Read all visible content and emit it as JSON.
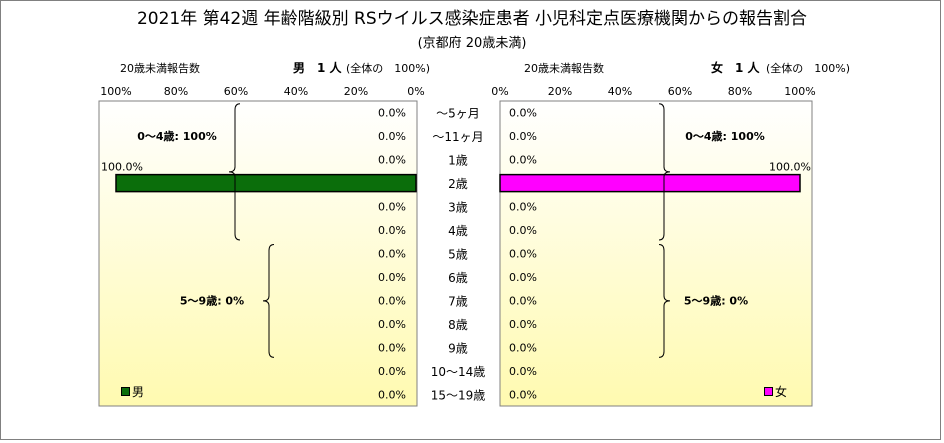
{
  "header": {
    "title": "2021年 第42週 年齢階級別 RSウイルス感染症患者 小児科定点医療機関からの報告割合",
    "subtitle": "(京都府 20歳未満)",
    "left_count_label": "20歳未満報告数",
    "left_sex_label": "男　1 人",
    "left_total_label": "(全体の　100%)",
    "right_count_label": "20歳未満報告数",
    "right_sex_label": "女　1 人",
    "right_total_label": "(全体の　100%)"
  },
  "colors": {
    "male": "#0b6e0b",
    "female": "#ff00ff",
    "plot_bg_top": "#ffffff",
    "plot_bg_bottom": "#fffab0"
  },
  "legend": {
    "male_label": "男",
    "female_label": "女"
  },
  "chart_data": [
    {
      "type": "bar",
      "orientation": "horizontal",
      "direction": "right-to-left",
      "series": [
        {
          "name": "男",
          "values": [
            0,
            0,
            0,
            100,
            0,
            0,
            0,
            0,
            0,
            0,
            0,
            0,
            0
          ]
        }
      ],
      "categories": [
        "～5ヶ月",
        "～11ヶ月",
        "1歳",
        "2歳",
        "3歳",
        "4歳",
        "5歳",
        "6歳",
        "7歳",
        "8歳",
        "9歳",
        "10～14歳",
        "15～19歳"
      ],
      "value_labels": [
        "0.0%",
        "0.0%",
        "0.0%",
        "100.0%",
        "0.0%",
        "0.0%",
        "0.0%",
        "0.0%",
        "0.0%",
        "0.0%",
        "0.0%",
        "0.0%",
        "0.0%"
      ],
      "xlim": [
        0,
        100
      ],
      "x_ticks": [
        "100%",
        "80%",
        "60%",
        "40%",
        "20%",
        "0%"
      ],
      "annotations": [
        "0～4歳: 100%",
        "5～9歳: 0%"
      ],
      "legend": "bottom-left",
      "grid": false
    },
    {
      "type": "bar",
      "orientation": "horizontal",
      "direction": "left-to-right",
      "series": [
        {
          "name": "女",
          "values": [
            0,
            0,
            0,
            100,
            0,
            0,
            0,
            0,
            0,
            0,
            0,
            0,
            0
          ]
        }
      ],
      "categories": [
        "～5ヶ月",
        "～11ヶ月",
        "1歳",
        "2歳",
        "3歳",
        "4歳",
        "5歳",
        "6歳",
        "7歳",
        "8歳",
        "9歳",
        "10～14歳",
        "15～19歳"
      ],
      "value_labels": [
        "0.0%",
        "0.0%",
        "0.0%",
        "100.0%",
        "0.0%",
        "0.0%",
        "0.0%",
        "0.0%",
        "0.0%",
        "0.0%",
        "0.0%",
        "0.0%",
        "0.0%"
      ],
      "xlim": [
        0,
        100
      ],
      "x_ticks": [
        "0%",
        "20%",
        "40%",
        "60%",
        "80%",
        "100%"
      ],
      "annotations": [
        "0～4歳: 100%",
        "5～9歳: 0%"
      ],
      "legend": "bottom-right",
      "grid": false
    }
  ]
}
